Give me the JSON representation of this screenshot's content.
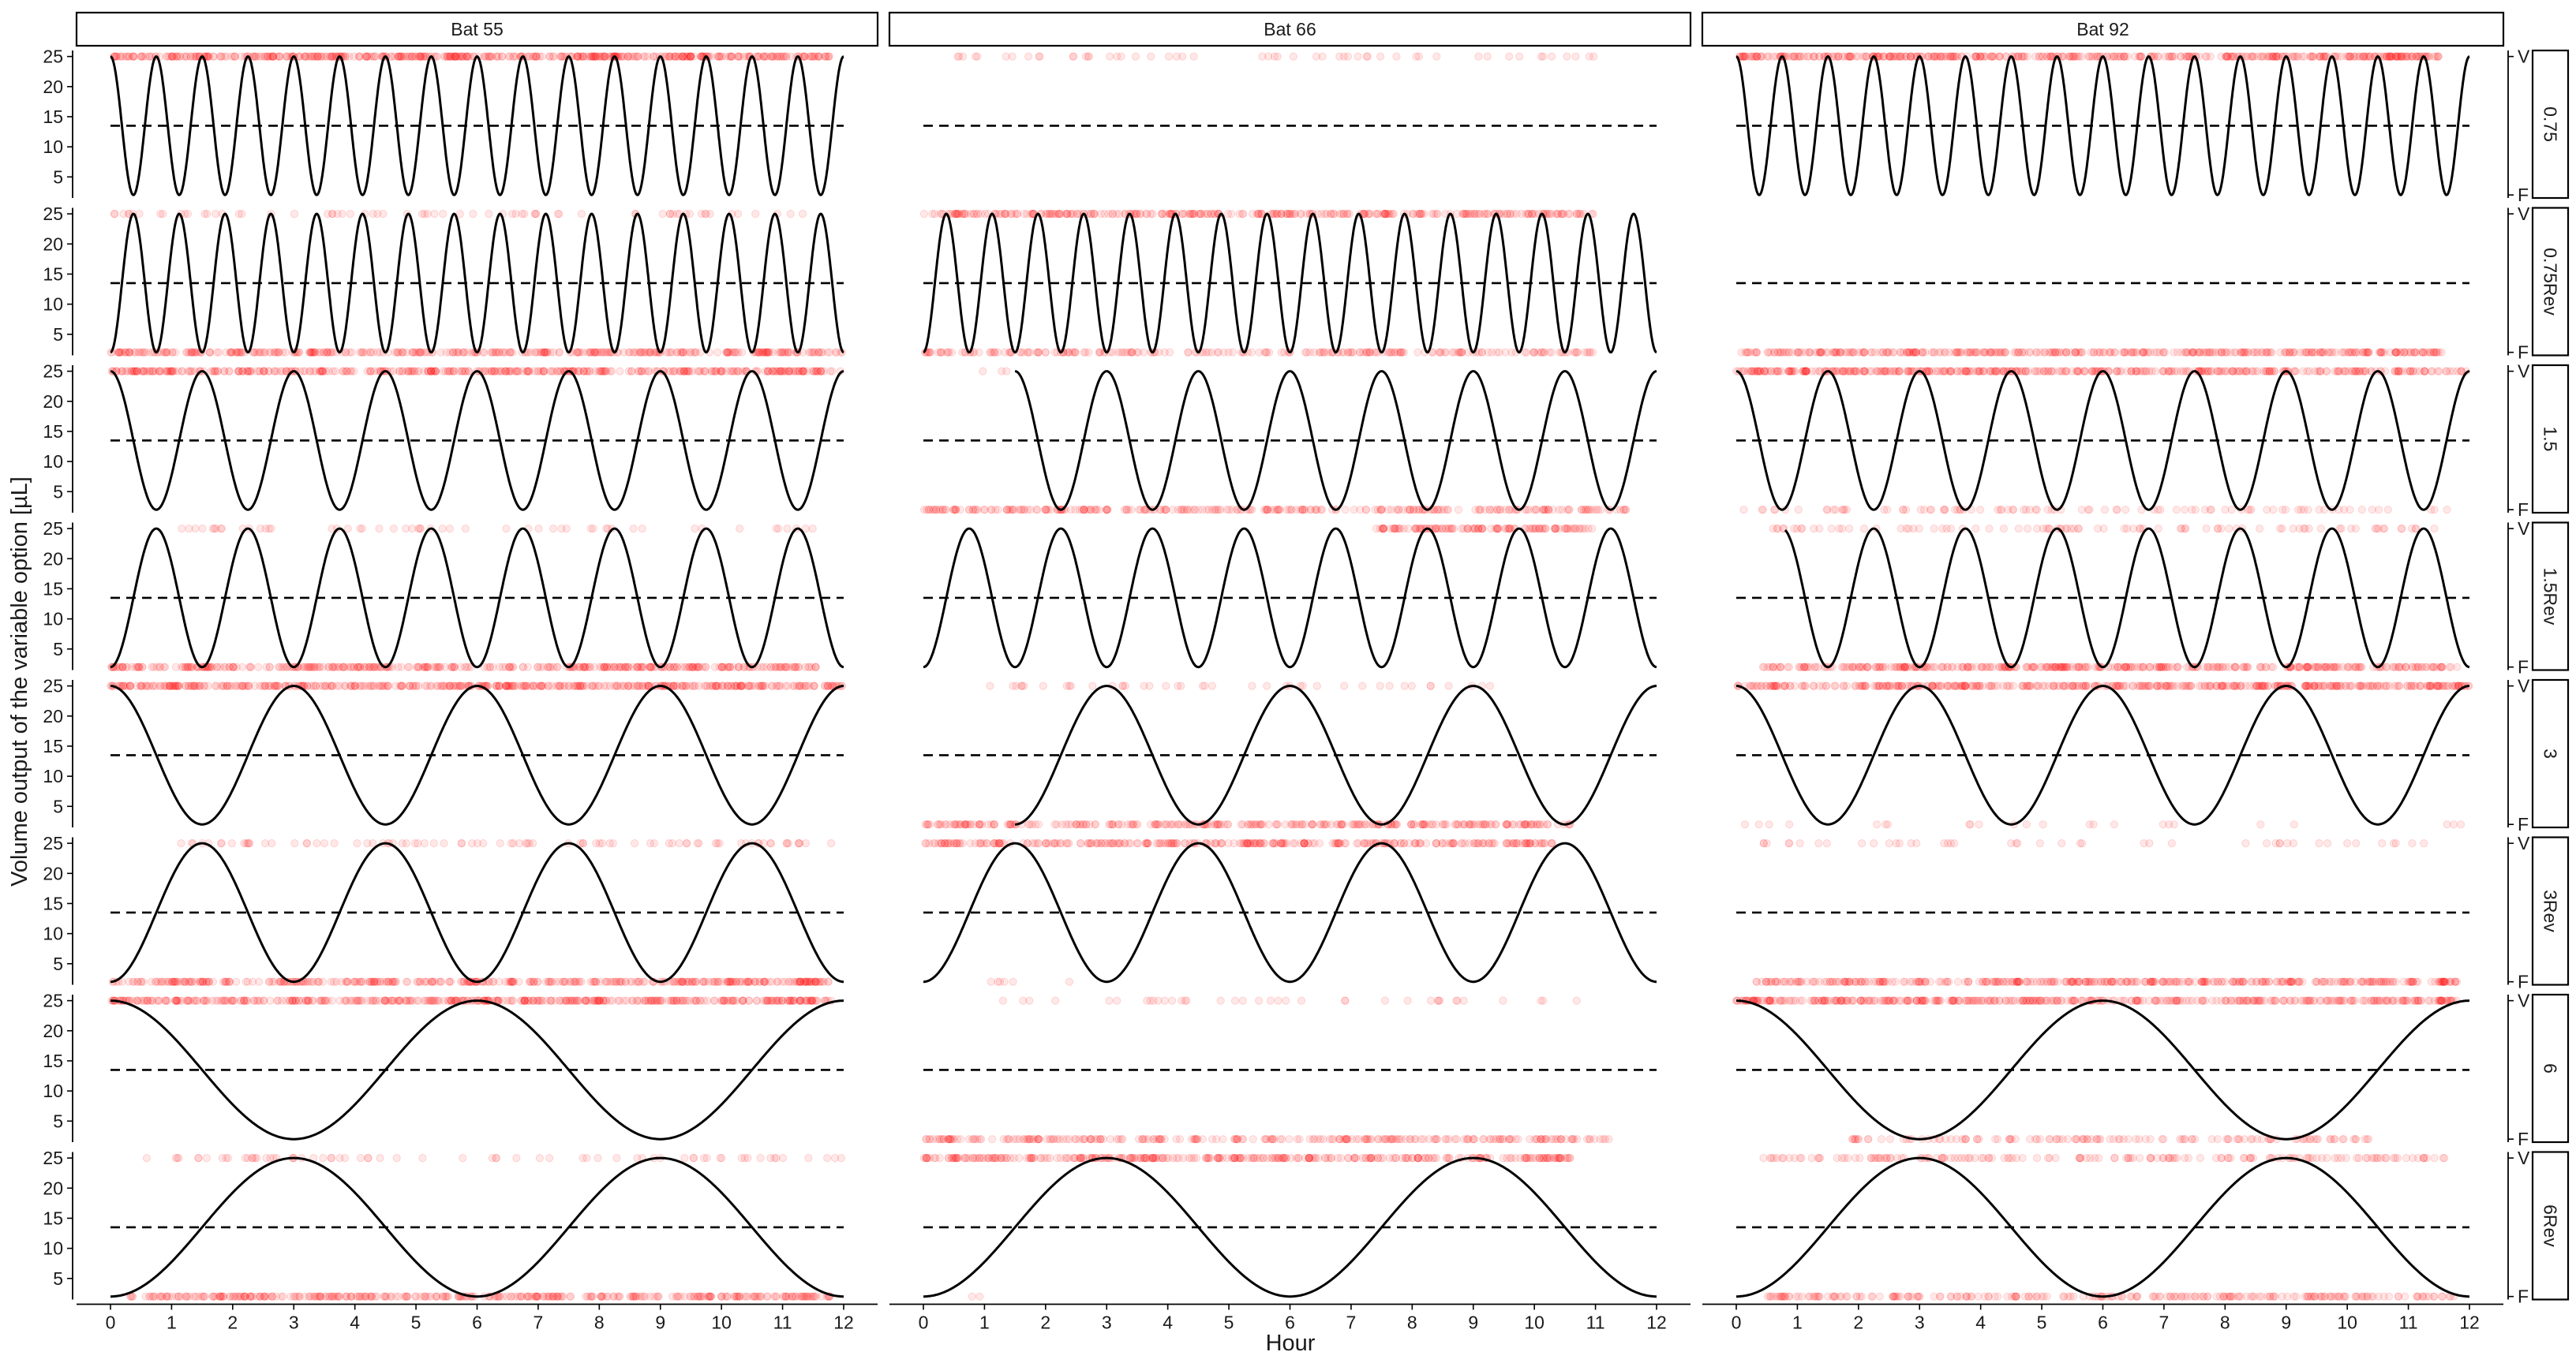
{
  "chart_data": {
    "type": "faceted line + scatter",
    "xlabel": "Hour",
    "ylabel": "Volume output of the variable option [µL]",
    "columns": [
      "Bat 55",
      "Bat 66",
      "Bat 92"
    ],
    "rows": [
      "0.75",
      "0.75Rev",
      "1.5",
      "1.5Rev",
      "3",
      "3Rev",
      "6",
      "6Rev"
    ],
    "x_ticks": [
      0,
      1,
      2,
      3,
      4,
      5,
      6,
      7,
      8,
      9,
      10,
      11,
      12
    ],
    "xlim": [
      0,
      12
    ],
    "y_ticks": [
      5,
      10,
      15,
      20,
      25
    ],
    "ylim": [
      1.5,
      26
    ],
    "secondary_y_ticks": [
      "V",
      "F"
    ],
    "threshold_line": 13.5,
    "sine_series": [
      {
        "period_hours": 0.75,
        "reversed": false,
        "min": 2,
        "max": 25
      },
      {
        "period_hours": 0.75,
        "reversed": true,
        "min": 2,
        "max": 25
      },
      {
        "period_hours": 1.5,
        "reversed": false,
        "min": 2,
        "max": 25
      },
      {
        "period_hours": 1.5,
        "reversed": true,
        "min": 2,
        "max": 25
      },
      {
        "period_hours": 3,
        "reversed": false,
        "min": 2,
        "max": 25
      },
      {
        "period_hours": 3,
        "reversed": true,
        "min": 2,
        "max": 25
      },
      {
        "period_hours": 6,
        "reversed": false,
        "min": 2,
        "max": 25
      },
      {
        "period_hours": 6,
        "reversed": true,
        "min": 2,
        "max": 25
      }
    ],
    "sine_visible_range": [
      [
        [
          0,
          12
        ],
        [
          0,
          12
        ],
        [
          0,
          12
        ],
        [
          0,
          12
        ],
        [
          0,
          12
        ],
        [
          0,
          12
        ],
        [
          0,
          12
        ],
        [
          0,
          12
        ]
      ],
      [
        [
          0,
          0
        ],
        [
          0,
          12
        ],
        [
          1.5,
          12
        ],
        [
          0,
          12
        ],
        [
          1.5,
          12
        ],
        [
          0,
          12
        ],
        [
          0,
          0
        ],
        [
          0,
          12
        ]
      ],
      [
        [
          0,
          12
        ],
        [
          0,
          0
        ],
        [
          0,
          12
        ],
        [
          0.8,
          12
        ],
        [
          0,
          12
        ],
        [
          0,
          0
        ],
        [
          0,
          12
        ],
        [
          0,
          12
        ]
      ]
    ],
    "choice_points_y": {
      "V": 25,
      "F": 2
    },
    "choice_points": [
      [
        {
          "V": [
            [
              0,
              11.8,
              1.0
            ]
          ],
          "F": []
        },
        {
          "V": [
            [
              0,
              11.6,
              0.15
            ]
          ],
          "F": [
            [
              0,
              12,
              0.75
            ]
          ]
        },
        {
          "V": [
            [
              0,
              12,
              0.85
            ]
          ],
          "F": []
        },
        {
          "V": [
            [
              0.5,
              11.5,
              0.12
            ]
          ],
          "F": [
            [
              0,
              11.6,
              0.8
            ]
          ]
        },
        {
          "V": [
            [
              0,
              12,
              0.9
            ]
          ],
          "F": []
        },
        {
          "V": [
            [
              1,
              11.8,
              0.2
            ]
          ],
          "F": [
            [
              0,
              11.8,
              0.8
            ]
          ]
        },
        {
          "V": [
            [
              0,
              11.8,
              0.9
            ]
          ],
          "F": []
        },
        {
          "V": [
            [
              0.4,
              12,
              0.15
            ]
          ],
          "F": [
            [
              0.3,
              11.8,
              0.75
            ]
          ]
        }
      ],
      [
        {
          "V": [
            [
              0,
              11,
              0.12
            ]
          ],
          "F": []
        },
        {
          "V": [
            [
              0,
              11,
              0.7
            ]
          ],
          "F": [
            [
              0,
              11,
              0.5
            ]
          ]
        },
        {
          "V": [
            [
              0,
              1.5,
              0.05
            ]
          ],
          "F": [
            [
              0,
              11.5,
              0.6
            ]
          ]
        },
        {
          "V": [
            [
              7.4,
              11,
              0.8
            ]
          ],
          "F": []
        },
        {
          "V": [
            [
              0.8,
              9.5,
              0.12
            ]
          ],
          "F": [
            [
              0,
              10.6,
              0.65
            ]
          ]
        },
        {
          "V": [
            [
              0,
              10.3,
              0.7
            ]
          ],
          "F": [
            [
              1.1,
              2.6,
              0.1
            ]
          ]
        },
        {
          "V": [
            [
              1.2,
              10.8,
              0.1
            ]
          ],
          "F": [
            [
              0,
              11.3,
              0.55
            ]
          ]
        },
        {
          "V": [
            [
              0,
              10.6,
              0.75
            ]
          ],
          "F": [
            [
              0.6,
              1.2,
              0.08
            ]
          ]
        }
      ],
      [
        {
          "V": [
            [
              0,
              11.6,
              0.9
            ]
          ],
          "F": []
        },
        {
          "V": [
            [
              0,
              0.2,
              0.05
            ]
          ],
          "F": [
            [
              0,
              11.6,
              0.8
            ]
          ]
        },
        {
          "V": [
            [
              0,
              12,
              0.85
            ]
          ],
          "F": [
            [
              0,
              11.8,
              0.2
            ]
          ]
        },
        {
          "V": [
            [
              0.4,
              11.6,
              0.2
            ]
          ],
          "F": [
            [
              0.4,
              11.8,
              0.8
            ]
          ]
        },
        {
          "V": [
            [
              0,
              12,
              0.85
            ]
          ],
          "F": [
            [
              0,
              12,
              0.05
            ]
          ]
        },
        {
          "V": [
            [
              0.4,
              11.6,
              0.1
            ]
          ],
          "F": [
            [
              0.3,
              11.8,
              0.8
            ]
          ]
        },
        {
          "V": [
            [
              0,
              11.8,
              0.85
            ]
          ],
          "F": [
            [
              1.8,
              10.4,
              0.35
            ]
          ]
        },
        {
          "V": [
            [
              0.4,
              11.6,
              0.35
            ]
          ],
          "F": [
            [
              0.5,
              11.8,
              0.5
            ]
          ]
        }
      ]
    ]
  }
}
